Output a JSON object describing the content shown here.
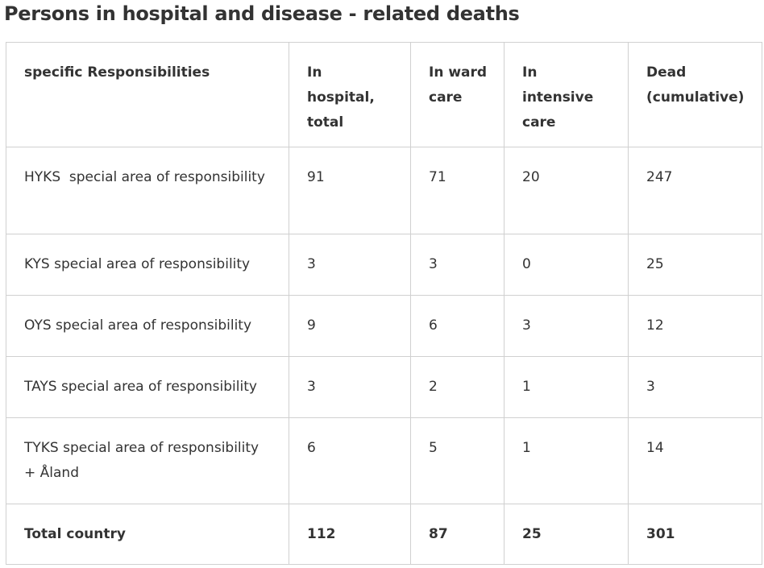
{
  "title": "Persons in hospital and disease - related deaths",
  "table": {
    "header": [
      "specific Responsibilities",
      "In hospital, total",
      "In ward care",
      "In intensive care",
      "Dead (cumulative)"
    ],
    "rows": [
      [
        "HYKS  special area of responsibility",
        91,
        71,
        20,
        247
      ],
      [
        "KYS special area of responsibility",
        3,
        3,
        0,
        25
      ],
      [
        "OYS special area of responsibility",
        9,
        6,
        3,
        12
      ],
      [
        "TAYS special area of responsibility",
        3,
        2,
        1,
        3
      ],
      [
        "TYKS special area of responsibility + Åland",
        6,
        5,
        1,
        14
      ]
    ],
    "total": [
      "Total country",
      112,
      87,
      25,
      301
    ]
  }
}
